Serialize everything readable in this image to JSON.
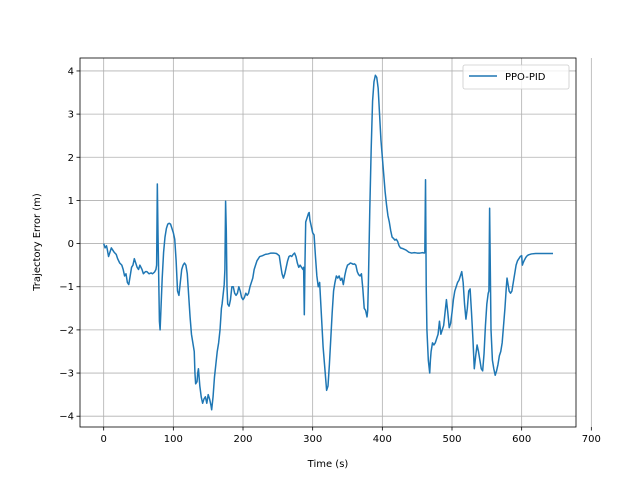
{
  "chart_data": {
    "type": "line",
    "xlabel": "Time (s)",
    "ylabel": "Trajectory Error (m)",
    "xlim": [
      -34,
      678
    ],
    "ylim": [
      -4.25,
      4.3
    ],
    "xticks": [
      0,
      100,
      200,
      300,
      400,
      500,
      600,
      700
    ],
    "yticks": [
      -4,
      -3,
      -2,
      -1,
      0,
      1,
      2,
      3,
      4
    ],
    "grid": true,
    "legend_position": "upper right",
    "series": [
      {
        "name": "PPO-PID",
        "color": "#1f77b4",
        "points": [
          [
            0,
            0
          ],
          [
            2,
            -0.1
          ],
          [
            4,
            -0.05
          ],
          [
            5,
            -0.12
          ],
          [
            7,
            -0.3
          ],
          [
            9,
            -0.2
          ],
          [
            11,
            -0.1
          ],
          [
            13,
            -0.15
          ],
          [
            15,
            -0.2
          ],
          [
            18,
            -0.25
          ],
          [
            20,
            -0.35
          ],
          [
            23,
            -0.45
          ],
          [
            26,
            -0.5
          ],
          [
            28,
            -0.6
          ],
          [
            30,
            -0.75
          ],
          [
            32,
            -0.7
          ],
          [
            34,
            -0.9
          ],
          [
            36,
            -0.95
          ],
          [
            38,
            -0.75
          ],
          [
            40,
            -0.55
          ],
          [
            42,
            -0.5
          ],
          [
            44,
            -0.35
          ],
          [
            46,
            -0.45
          ],
          [
            48,
            -0.55
          ],
          [
            50,
            -0.6
          ],
          [
            52,
            -0.5
          ],
          [
            55,
            -0.6
          ],
          [
            57,
            -0.7
          ],
          [
            60,
            -0.65
          ],
          [
            62,
            -0.65
          ],
          [
            65,
            -0.7
          ],
          [
            68,
            -0.68
          ],
          [
            70,
            -0.7
          ],
          [
            73,
            -0.66
          ],
          [
            75,
            -0.6
          ],
          [
            76,
            -0.5
          ],
          [
            77,
            1.38
          ],
          [
            78,
            0.2
          ],
          [
            79,
            -0.8
          ],
          [
            80,
            -1.8
          ],
          [
            81,
            -2.0
          ],
          [
            82,
            -1.6
          ],
          [
            84,
            -0.8
          ],
          [
            86,
            -0.2
          ],
          [
            88,
            0.15
          ],
          [
            90,
            0.35
          ],
          [
            92,
            0.45
          ],
          [
            94,
            0.47
          ],
          [
            96,
            0.45
          ],
          [
            98,
            0.35
          ],
          [
            100,
            0.25
          ],
          [
            102,
            0.1
          ],
          [
            104,
            -0.4
          ],
          [
            106,
            -1.1
          ],
          [
            108,
            -1.2
          ],
          [
            110,
            -0.9
          ],
          [
            112,
            -0.6
          ],
          [
            114,
            -0.5
          ],
          [
            116,
            -0.45
          ],
          [
            118,
            -0.5
          ],
          [
            120,
            -0.7
          ],
          [
            122,
            -1.2
          ],
          [
            124,
            -1.7
          ],
          [
            126,
            -2.1
          ],
          [
            128,
            -2.3
          ],
          [
            130,
            -2.5
          ],
          [
            131,
            -3.0
          ],
          [
            132,
            -3.25
          ],
          [
            134,
            -3.2
          ],
          [
            135,
            -3.0
          ],
          [
            136,
            -2.9
          ],
          [
            138,
            -3.3
          ],
          [
            140,
            -3.55
          ],
          [
            142,
            -3.7
          ],
          [
            144,
            -3.6
          ],
          [
            146,
            -3.55
          ],
          [
            148,
            -3.7
          ],
          [
            150,
            -3.5
          ],
          [
            152,
            -3.6
          ],
          [
            154,
            -3.75
          ],
          [
            155,
            -3.85
          ],
          [
            157,
            -3.55
          ],
          [
            159,
            -3.1
          ],
          [
            161,
            -2.8
          ],
          [
            163,
            -2.5
          ],
          [
            165,
            -2.3
          ],
          [
            167,
            -2.0
          ],
          [
            169,
            -1.5
          ],
          [
            170,
            -1.4
          ],
          [
            172,
            -1.1
          ],
          [
            173,
            -0.95
          ],
          [
            174,
            -0.6
          ],
          [
            175,
            0.98
          ],
          [
            176,
            0.3
          ],
          [
            177,
            -1.0
          ],
          [
            178,
            -1.4
          ],
          [
            180,
            -1.45
          ],
          [
            182,
            -1.3
          ],
          [
            184,
            -1.0
          ],
          [
            186,
            -1.0
          ],
          [
            188,
            -1.15
          ],
          [
            190,
            -1.2
          ],
          [
            192,
            -1.15
          ],
          [
            194,
            -1.0
          ],
          [
            196,
            -1.1
          ],
          [
            198,
            -1.25
          ],
          [
            200,
            -1.3
          ],
          [
            202,
            -1.25
          ],
          [
            204,
            -1.15
          ],
          [
            206,
            -1.2
          ],
          [
            208,
            -1.15
          ],
          [
            210,
            -1.0
          ],
          [
            212,
            -0.9
          ],
          [
            214,
            -0.8
          ],
          [
            216,
            -0.6
          ],
          [
            218,
            -0.5
          ],
          [
            220,
            -0.4
          ],
          [
            222,
            -0.35
          ],
          [
            224,
            -0.3
          ],
          [
            228,
            -0.28
          ],
          [
            232,
            -0.25
          ],
          [
            236,
            -0.24
          ],
          [
            240,
            -0.22
          ],
          [
            244,
            -0.22
          ],
          [
            248,
            -0.23
          ],
          [
            252,
            -0.28
          ],
          [
            254,
            -0.5
          ],
          [
            256,
            -0.7
          ],
          [
            258,
            -0.8
          ],
          [
            260,
            -0.7
          ],
          [
            262,
            -0.55
          ],
          [
            264,
            -0.4
          ],
          [
            266,
            -0.3
          ],
          [
            268,
            -0.28
          ],
          [
            270,
            -0.3
          ],
          [
            272,
            -0.25
          ],
          [
            274,
            -0.22
          ],
          [
            276,
            -0.3
          ],
          [
            278,
            -0.45
          ],
          [
            280,
            -0.55
          ],
          [
            282,
            -0.5
          ],
          [
            284,
            -0.55
          ],
          [
            286,
            -0.6
          ],
          [
            287,
            -0.55
          ],
          [
            288,
            -1.65
          ],
          [
            289,
            -0.4
          ],
          [
            290,
            0.5
          ],
          [
            292,
            0.6
          ],
          [
            294,
            0.7
          ],
          [
            295,
            0.72
          ],
          [
            296,
            0.55
          ],
          [
            298,
            0.4
          ],
          [
            300,
            0.25
          ],
          [
            302,
            0.2
          ],
          [
            304,
            -0.3
          ],
          [
            306,
            -0.75
          ],
          [
            308,
            -1.0
          ],
          [
            310,
            -0.9
          ],
          [
            311,
            -1.2
          ],
          [
            313,
            -1.8
          ],
          [
            315,
            -2.4
          ],
          [
            317,
            -2.8
          ],
          [
            319,
            -3.2
          ],
          [
            320,
            -3.4
          ],
          [
            322,
            -3.3
          ],
          [
            324,
            -2.8
          ],
          [
            326,
            -2.2
          ],
          [
            328,
            -1.6
          ],
          [
            330,
            -1.1
          ],
          [
            332,
            -0.9
          ],
          [
            334,
            -0.75
          ],
          [
            336,
            -0.8
          ],
          [
            338,
            -0.75
          ],
          [
            340,
            -0.85
          ],
          [
            342,
            -0.8
          ],
          [
            344,
            -0.95
          ],
          [
            346,
            -0.75
          ],
          [
            348,
            -0.6
          ],
          [
            350,
            -0.5
          ],
          [
            352,
            -0.48
          ],
          [
            354,
            -0.45
          ],
          [
            356,
            -0.46
          ],
          [
            358,
            -0.48
          ],
          [
            360,
            -0.47
          ],
          [
            362,
            -0.5
          ],
          [
            364,
            -0.65
          ],
          [
            366,
            -0.72
          ],
          [
            368,
            -0.75
          ],
          [
            370,
            -0.7
          ],
          [
            372,
            -1.05
          ],
          [
            374,
            -1.5
          ],
          [
            376,
            -1.55
          ],
          [
            378,
            -1.7
          ],
          [
            379,
            -1.55
          ],
          [
            380,
            -0.9
          ],
          [
            382,
            0.8
          ],
          [
            384,
            2.2
          ],
          [
            386,
            3.3
          ],
          [
            388,
            3.75
          ],
          [
            390,
            3.9
          ],
          [
            392,
            3.85
          ],
          [
            394,
            3.6
          ],
          [
            396,
            3.0
          ],
          [
            398,
            2.4
          ],
          [
            400,
            2.0
          ],
          [
            402,
            1.6
          ],
          [
            404,
            1.2
          ],
          [
            406,
            0.9
          ],
          [
            408,
            0.65
          ],
          [
            410,
            0.5
          ],
          [
            412,
            0.3
          ],
          [
            414,
            0.15
          ],
          [
            416,
            0.12
          ],
          [
            418,
            0.08
          ],
          [
            420,
            0.1
          ],
          [
            422,
            0.05
          ],
          [
            424,
            -0.05
          ],
          [
            426,
            -0.1
          ],
          [
            430,
            -0.12
          ],
          [
            434,
            -0.15
          ],
          [
            438,
            -0.2
          ],
          [
            442,
            -0.22
          ],
          [
            446,
            -0.21
          ],
          [
            450,
            -0.22
          ],
          [
            454,
            -0.22
          ],
          [
            458,
            -0.21
          ],
          [
            460,
            -0.22
          ],
          [
            461,
            -0.21
          ],
          [
            462,
            1.48
          ],
          [
            463,
            -1.0
          ],
          [
            464,
            -2.0
          ],
          [
            466,
            -2.7
          ],
          [
            468,
            -3.0
          ],
          [
            469,
            -2.7
          ],
          [
            470,
            -2.5
          ],
          [
            472,
            -2.3
          ],
          [
            474,
            -2.35
          ],
          [
            476,
            -2.3
          ],
          [
            478,
            -2.2
          ],
          [
            480,
            -2.1
          ],
          [
            482,
            -1.8
          ],
          [
            484,
            -2.1
          ],
          [
            486,
            -2.0
          ],
          [
            488,
            -1.9
          ],
          [
            490,
            -1.6
          ],
          [
            492,
            -1.3
          ],
          [
            494,
            -1.6
          ],
          [
            496,
            -1.95
          ],
          [
            498,
            -1.85
          ],
          [
            500,
            -1.6
          ],
          [
            502,
            -1.3
          ],
          [
            504,
            -1.1
          ],
          [
            506,
            -1.0
          ],
          [
            508,
            -0.9
          ],
          [
            510,
            -0.85
          ],
          [
            512,
            -0.75
          ],
          [
            514,
            -0.65
          ],
          [
            516,
            -0.9
          ],
          [
            518,
            -1.4
          ],
          [
            520,
            -1.75
          ],
          [
            522,
            -1.5
          ],
          [
            524,
            -1.1
          ],
          [
            526,
            -1.05
          ],
          [
            528,
            -1.6
          ],
          [
            530,
            -2.2
          ],
          [
            532,
            -2.9
          ],
          [
            534,
            -2.6
          ],
          [
            536,
            -2.35
          ],
          [
            538,
            -2.5
          ],
          [
            540,
            -2.7
          ],
          [
            542,
            -2.9
          ],
          [
            544,
            -2.95
          ],
          [
            546,
            -2.55
          ],
          [
            548,
            -1.9
          ],
          [
            550,
            -1.4
          ],
          [
            552,
            -1.15
          ],
          [
            553,
            -1.1
          ],
          [
            554,
            0.82
          ],
          [
            555,
            -0.6
          ],
          [
            556,
            -2.0
          ],
          [
            558,
            -2.7
          ],
          [
            560,
            -2.9
          ],
          [
            562,
            -3.05
          ],
          [
            564,
            -2.95
          ],
          [
            566,
            -2.8
          ],
          [
            568,
            -2.6
          ],
          [
            570,
            -2.5
          ],
          [
            572,
            -2.3
          ],
          [
            574,
            -1.9
          ],
          [
            576,
            -1.5
          ],
          [
            578,
            -1.0
          ],
          [
            579,
            -0.8
          ],
          [
            580,
            -0.9
          ],
          [
            582,
            -1.1
          ],
          [
            584,
            -1.15
          ],
          [
            586,
            -1.1
          ],
          [
            588,
            -0.9
          ],
          [
            590,
            -0.7
          ],
          [
            592,
            -0.5
          ],
          [
            594,
            -0.4
          ],
          [
            596,
            -0.35
          ],
          [
            598,
            -0.3
          ],
          [
            600,
            -0.28
          ],
          [
            601,
            -0.5
          ],
          [
            602,
            -0.45
          ],
          [
            604,
            -0.38
          ],
          [
            606,
            -0.32
          ],
          [
            608,
            -0.28
          ],
          [
            610,
            -0.26
          ],
          [
            614,
            -0.24
          ],
          [
            620,
            -0.23
          ],
          [
            630,
            -0.23
          ],
          [
            640,
            -0.23
          ],
          [
            645,
            -0.23
          ]
        ]
      }
    ]
  }
}
